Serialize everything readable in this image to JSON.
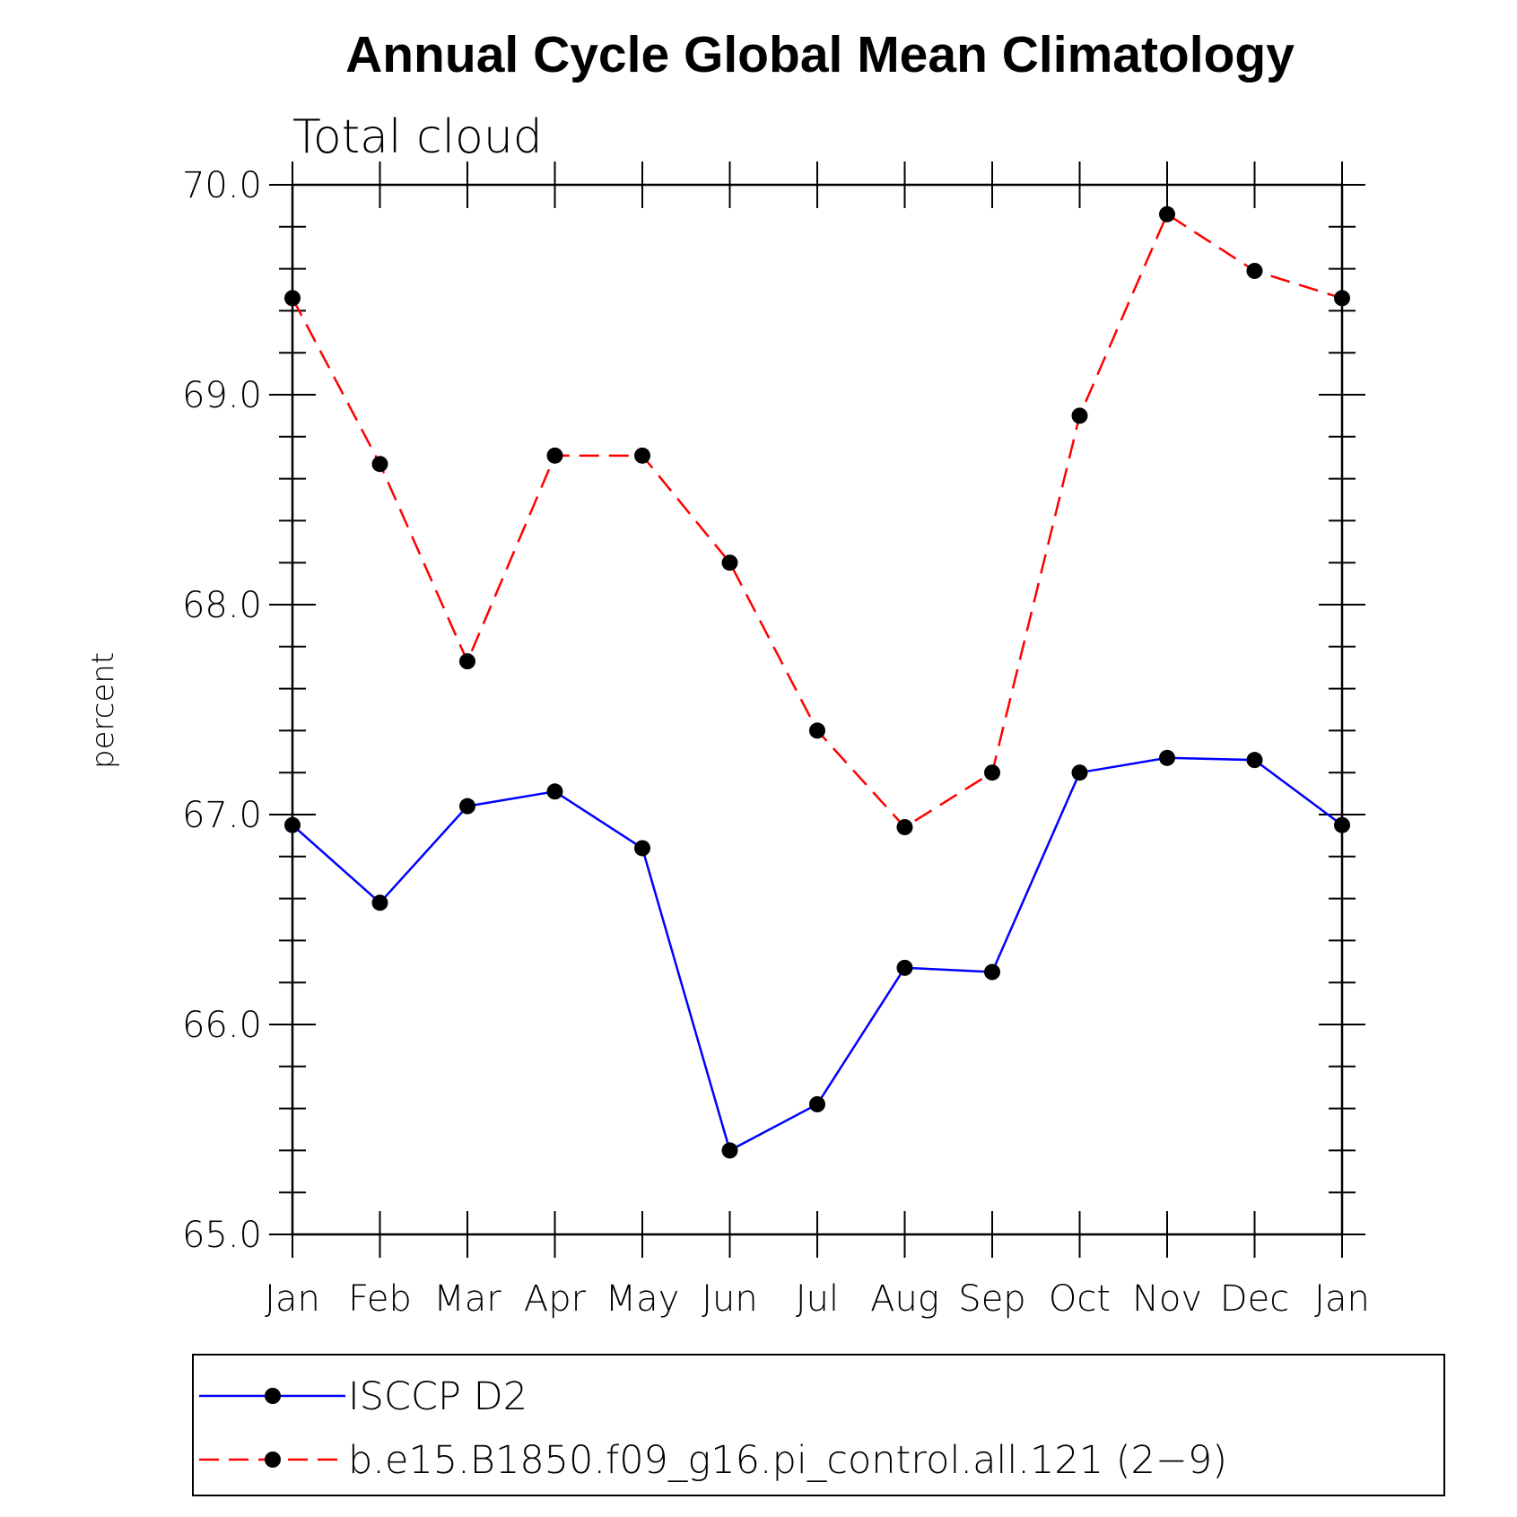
{
  "chart_data": {
    "type": "line",
    "title": "Annual Cycle Global Mean Climatology",
    "subtitle": "Total cloud",
    "xlabel": "",
    "ylabel": "percent",
    "ylim": [
      65.0,
      70.0
    ],
    "yticks": [
      "65.0",
      "66.0",
      "67.0",
      "68.0",
      "69.0",
      "70.0"
    ],
    "yticks_values": [
      65.0,
      66.0,
      67.0,
      68.0,
      69.0,
      70.0
    ],
    "y_minor_step": 0.2,
    "categories": [
      "Jan",
      "Feb",
      "Mar",
      "Apr",
      "May",
      "Jun",
      "Jul",
      "Aug",
      "Sep",
      "Oct",
      "Nov",
      "Dec",
      "Jan"
    ],
    "series": [
      {
        "name": "ISCCP D2",
        "color": "#0000ff",
        "dash": "solid",
        "values": [
          66.95,
          66.58,
          67.04,
          67.11,
          66.84,
          65.4,
          65.62,
          66.27,
          66.25,
          67.2,
          67.27,
          67.26,
          66.95
        ]
      },
      {
        "name": "b.e15.B1850.f09_g16.pi_control.all.121 (2-9)",
        "color": "#ff0000",
        "dash": "dashed",
        "values": [
          69.46,
          68.67,
          67.73,
          68.71,
          68.71,
          68.2,
          67.4,
          66.94,
          67.2,
          68.9,
          69.86,
          69.59,
          69.46
        ]
      }
    ],
    "legend": [
      "ISCCP D2",
      "b.e15.B1850.f09_g16.pi_control.all.121 (2−9)"
    ],
    "legend_position": "bottom",
    "marker_color": "#000000",
    "grid": false
  }
}
